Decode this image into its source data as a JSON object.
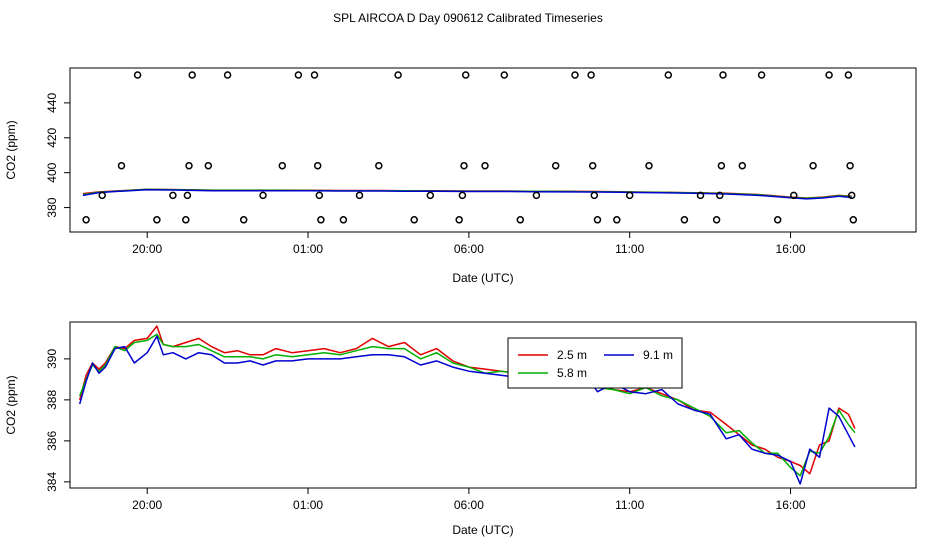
{
  "title": "SPL AIRCOA D  Day 090612  Calibrated Timeseries",
  "colors": {
    "s2_5": "#e00000",
    "s5_8": "#00b000",
    "s9_1": "#0000d0",
    "axis": "#000000"
  },
  "chart_data": [
    {
      "type": "scatter",
      "xlabel": "Date (UTC)",
      "ylabel": "CO2 (ppm)",
      "xticks": [
        "20:00",
        "01:00",
        "06:00",
        "11:00",
        "16:00"
      ],
      "xtick_hours": [
        20,
        25,
        30,
        35,
        40
      ],
      "xlim": [
        17.6,
        43.9
      ],
      "ylim": [
        366,
        460
      ],
      "yticks": [
        380,
        400,
        420,
        440
      ],
      "grid": false,
      "scatter_points": [
        [
          18.1,
          373
        ],
        [
          18.6,
          387
        ],
        [
          19.2,
          404
        ],
        [
          19.7,
          456
        ],
        [
          20.3,
          373
        ],
        [
          20.8,
          387
        ],
        [
          21.2,
          373
        ],
        [
          21.25,
          387
        ],
        [
          21.3,
          404
        ],
        [
          21.4,
          456
        ],
        [
          21.9,
          404
        ],
        [
          22.5,
          456
        ],
        [
          23.0,
          373
        ],
        [
          23.6,
          387
        ],
        [
          24.2,
          404
        ],
        [
          24.7,
          456
        ],
        [
          25.2,
          456
        ],
        [
          25.3,
          404
        ],
        [
          25.35,
          387
        ],
        [
          25.4,
          373
        ],
        [
          26.1,
          373
        ],
        [
          26.6,
          387
        ],
        [
          27.2,
          404
        ],
        [
          27.8,
          456
        ],
        [
          28.3,
          373
        ],
        [
          28.8,
          387
        ],
        [
          29.7,
          373
        ],
        [
          29.8,
          387
        ],
        [
          29.85,
          404
        ],
        [
          29.9,
          456
        ],
        [
          30.5,
          404
        ],
        [
          31.1,
          456
        ],
        [
          31.6,
          373
        ],
        [
          32.1,
          387
        ],
        [
          32.7,
          404
        ],
        [
          33.3,
          456
        ],
        [
          33.8,
          456
        ],
        [
          33.85,
          404
        ],
        [
          33.9,
          387
        ],
        [
          34.0,
          373
        ],
        [
          34.6,
          373
        ],
        [
          35.0,
          387
        ],
        [
          35.6,
          404
        ],
        [
          36.2,
          456
        ],
        [
          36.7,
          373
        ],
        [
          37.2,
          387
        ],
        [
          37.7,
          373
        ],
        [
          37.8,
          387
        ],
        [
          37.85,
          404
        ],
        [
          37.9,
          456
        ],
        [
          38.5,
          404
        ],
        [
          39.1,
          456
        ],
        [
          39.6,
          373
        ],
        [
          40.1,
          387
        ],
        [
          40.7,
          404
        ],
        [
          41.2,
          456
        ],
        [
          41.8,
          456
        ],
        [
          41.85,
          404
        ],
        [
          41.9,
          387
        ],
        [
          41.95,
          373
        ]
      ],
      "series": [
        {
          "name": "2.5 m",
          "color": "#e00000",
          "x": [
            18.0,
            18.5,
            19.0,
            20.0,
            21.0,
            22.0,
            23.0,
            24.0,
            25.0,
            26.0,
            27.0,
            28.0,
            29.0,
            30.0,
            31.0,
            32.0,
            33.0,
            34.0,
            35.0,
            36.0,
            37.0,
            38.0,
            39.0,
            40.0,
            40.5,
            41.0,
            41.5,
            41.9
          ],
          "y": [
            388,
            389,
            389.5,
            390.5,
            390.3,
            390.0,
            390.0,
            390.0,
            389.9,
            389.8,
            389.8,
            389.7,
            389.6,
            389.5,
            389.5,
            389.4,
            389.3,
            389.2,
            389.0,
            388.8,
            388.5,
            388.2,
            387.5,
            386.0,
            385.5,
            386.0,
            387.0,
            386.5
          ]
        },
        {
          "name": "5.8 m",
          "color": "#00b000",
          "x": [
            18.0,
            18.5,
            19.0,
            20.0,
            21.0,
            22.0,
            23.0,
            24.0,
            25.0,
            26.0,
            27.0,
            28.0,
            29.0,
            30.0,
            31.0,
            32.0,
            33.0,
            34.0,
            35.0,
            36.0,
            37.0,
            38.0,
            39.0,
            40.0,
            40.5,
            41.0,
            41.5,
            41.9
          ],
          "y": [
            387.5,
            388.8,
            389.4,
            390.4,
            390.2,
            389.9,
            389.9,
            389.9,
            389.8,
            389.7,
            389.7,
            389.6,
            389.5,
            389.4,
            389.4,
            389.3,
            389.2,
            389.1,
            388.9,
            388.7,
            388.4,
            388.0,
            387.3,
            385.8,
            385.3,
            385.8,
            386.8,
            386.2
          ]
        },
        {
          "name": "9.1 m",
          "color": "#0000d0",
          "x": [
            18.0,
            18.5,
            19.0,
            20.0,
            21.0,
            22.0,
            23.0,
            24.0,
            25.0,
            26.0,
            27.0,
            28.0,
            29.0,
            30.0,
            31.0,
            32.0,
            33.0,
            34.0,
            35.0,
            36.0,
            37.0,
            38.0,
            39.0,
            40.0,
            40.5,
            41.0,
            41.5,
            41.9
          ],
          "y": [
            387.0,
            388.6,
            389.2,
            390.2,
            390.0,
            389.7,
            389.7,
            389.7,
            389.6,
            389.5,
            389.5,
            389.4,
            389.3,
            389.2,
            389.2,
            389.1,
            389.0,
            388.9,
            388.7,
            388.5,
            388.2,
            387.8,
            387.0,
            385.6,
            385.0,
            385.5,
            386.5,
            385.8
          ]
        }
      ]
    },
    {
      "type": "line",
      "xlabel": "Date (UTC)",
      "ylabel": "CO2 (ppm)",
      "xticks": [
        "20:00",
        "01:00",
        "06:00",
        "11:00",
        "16:00"
      ],
      "xtick_hours": [
        20,
        25,
        30,
        35,
        40
      ],
      "xlim": [
        17.6,
        43.9
      ],
      "ylim": [
        383.7,
        391.8
      ],
      "yticks": [
        384,
        386,
        388,
        390
      ],
      "grid": false,
      "legend": {
        "position": "center-top",
        "entries": [
          "2.5 m",
          "9.1 m",
          "5.8 m"
        ]
      },
      "series": [
        {
          "name": "2.5 m",
          "color": "#e00000",
          "x": [
            17.9,
            18.1,
            18.3,
            18.5,
            18.7,
            19.0,
            19.3,
            19.6,
            20.0,
            20.3,
            20.5,
            20.8,
            21.2,
            21.6,
            22.0,
            22.4,
            22.8,
            23.2,
            23.6,
            24.0,
            24.5,
            25.0,
            25.5,
            26.0,
            26.5,
            27.0,
            27.5,
            28.0,
            28.5,
            29.0,
            29.5,
            30.0,
            30.5,
            31.0,
            31.5,
            32.0,
            32.5,
            33.0,
            33.5,
            34.0,
            34.5,
            35.0,
            35.5,
            36.0,
            36.5,
            37.0,
            37.5,
            38.0,
            38.4,
            38.8,
            39.2,
            39.6,
            40.0,
            40.3,
            40.6,
            40.9,
            41.2,
            41.5,
            41.8,
            42.0
          ],
          "y": [
            388.0,
            389.2,
            389.8,
            389.5,
            389.8,
            390.6,
            390.5,
            390.9,
            391.0,
            391.6,
            390.7,
            390.6,
            390.8,
            391.0,
            390.6,
            390.3,
            390.4,
            390.2,
            390.2,
            390.5,
            390.3,
            390.4,
            390.5,
            390.3,
            390.5,
            391.0,
            390.6,
            390.8,
            390.2,
            390.5,
            389.9,
            389.6,
            389.5,
            389.4,
            389.3,
            389.2,
            389.0,
            388.8,
            389.3,
            388.7,
            388.5,
            388.4,
            388.6,
            388.3,
            388.0,
            387.5,
            387.4,
            386.8,
            386.3,
            385.8,
            385.6,
            385.2,
            385.0,
            384.8,
            384.4,
            385.8,
            386.0,
            387.6,
            387.3,
            386.6
          ]
        },
        {
          "name": "5.8 m",
          "color": "#00b000",
          "x": [
            17.9,
            18.1,
            18.3,
            18.5,
            18.7,
            19.0,
            19.3,
            19.6,
            20.0,
            20.3,
            20.5,
            20.8,
            21.2,
            21.6,
            22.0,
            22.4,
            22.8,
            23.2,
            23.6,
            24.0,
            24.5,
            25.0,
            25.5,
            26.0,
            26.5,
            27.0,
            27.5,
            28.0,
            28.5,
            29.0,
            29.5,
            30.0,
            30.5,
            31.0,
            31.5,
            32.0,
            32.5,
            33.0,
            33.5,
            34.0,
            34.5,
            35.0,
            35.5,
            36.0,
            36.5,
            37.0,
            37.5,
            38.0,
            38.4,
            38.8,
            39.2,
            39.6,
            40.0,
            40.3,
            40.6,
            40.9,
            41.2,
            41.5,
            41.8,
            42.0
          ],
          "y": [
            388.2,
            389.0,
            389.7,
            389.4,
            389.7,
            390.6,
            390.4,
            390.8,
            390.9,
            391.2,
            390.7,
            390.6,
            390.6,
            390.7,
            390.4,
            390.1,
            390.1,
            390.1,
            390.0,
            390.2,
            390.1,
            390.2,
            390.3,
            390.2,
            390.4,
            390.6,
            390.5,
            390.5,
            390.0,
            390.3,
            389.8,
            389.6,
            389.3,
            389.4,
            389.3,
            389.0,
            388.9,
            388.8,
            389.4,
            388.6,
            388.5,
            388.3,
            388.6,
            388.2,
            388.0,
            387.6,
            387.2,
            386.4,
            386.5,
            385.9,
            385.4,
            385.4,
            384.7,
            384.3,
            385.5,
            385.4,
            386.2,
            387.5,
            386.8,
            386.4
          ]
        },
        {
          "name": "9.1 m",
          "color": "#0000d0",
          "x": [
            17.9,
            18.1,
            18.3,
            18.5,
            18.7,
            19.0,
            19.3,
            19.6,
            20.0,
            20.3,
            20.5,
            20.8,
            21.2,
            21.6,
            22.0,
            22.4,
            22.8,
            23.2,
            23.6,
            24.0,
            24.5,
            25.0,
            25.5,
            26.0,
            26.5,
            27.0,
            27.5,
            28.0,
            28.5,
            29.0,
            29.5,
            30.0,
            30.5,
            31.0,
            31.5,
            32.0,
            32.5,
            33.0,
            33.5,
            34.0,
            34.5,
            35.0,
            35.5,
            36.0,
            36.5,
            37.0,
            37.5,
            38.0,
            38.4,
            38.8,
            39.2,
            39.6,
            40.0,
            40.3,
            40.6,
            40.9,
            41.2,
            41.5,
            41.8,
            42.0
          ],
          "y": [
            387.8,
            388.9,
            389.8,
            389.3,
            389.6,
            390.5,
            390.6,
            389.8,
            390.3,
            391.1,
            390.2,
            390.3,
            390.0,
            390.3,
            390.2,
            389.8,
            389.8,
            389.9,
            389.7,
            389.9,
            389.9,
            390.0,
            390.0,
            390.0,
            390.1,
            390.2,
            390.2,
            390.1,
            389.7,
            389.9,
            389.6,
            389.4,
            389.3,
            389.2,
            389.1,
            388.9,
            388.8,
            388.7,
            389.5,
            388.4,
            388.8,
            388.4,
            388.3,
            388.5,
            387.8,
            387.5,
            387.3,
            386.1,
            386.3,
            385.6,
            385.4,
            385.3,
            385.0,
            383.9,
            385.6,
            385.2,
            387.6,
            387.2,
            386.3,
            385.7
          ]
        }
      ]
    }
  ]
}
